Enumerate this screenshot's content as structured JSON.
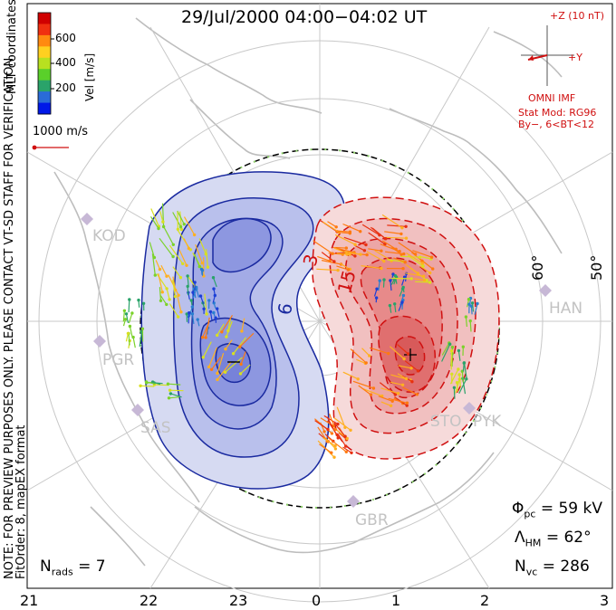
{
  "header": {
    "title": "29/Jul/2000 04:00−04:02 UT"
  },
  "colorbar": {
    "label": "Vel [m/s]",
    "ticks": [
      "600",
      "400",
      "200"
    ],
    "colors": [
      "#0018e8",
      "#2a6bd8",
      "#2aa36a",
      "#5ad02a",
      "#b8e020",
      "#ffd020",
      "#ff8a10",
      "#f03010",
      "#d00000"
    ]
  },
  "coord_label": "MLT coordinates",
  "scale": {
    "label": "1000 m/s"
  },
  "side_note": {
    "line1": "NOTE: FOR PREVIEW PURPOSES ONLY. PLEASE CONTACT VT-SD STAFF FOR VERIFICATION.",
    "line2": "FitOrder: 8, mapEX format"
  },
  "imf": {
    "z_label": "+Z (10 nT)",
    "y_label": "+Y",
    "source": "OMNI IMF",
    "model_line1": "Stat Mod: RG96",
    "model_line2": "By−, 6<BT<12"
  },
  "contours": {
    "neg_label": "6",
    "pos_label_1": "3",
    "pos_label_2": "15"
  },
  "latitudes": [
    "60°",
    "50°"
  ],
  "radars": [
    "KOD",
    "PGR",
    "SAS",
    "HAN",
    "STO",
    "PYK",
    "GBR"
  ],
  "stats": {
    "phi_symbol": "Φ",
    "phi_sub": "pc",
    "phi_value": "= 59 kV",
    "lambda_symbol": "Λ",
    "lambda_sub": "HM",
    "lambda_value": "= 62°",
    "nvc_symbol": "N",
    "nvc_sub": "vc",
    "nvc_value": "= 286",
    "nrads_symbol": "N",
    "nrads_sub": "rads",
    "nrads_value": "= 7"
  },
  "mlt_axis": [
    "21",
    "22",
    "23",
    "0",
    "1",
    "2",
    "3"
  ],
  "colors": {
    "negative": "#1a2aa0",
    "positive": "#d01010",
    "grid": "#c8c8c8",
    "coast": "#bdbdbd"
  }
}
